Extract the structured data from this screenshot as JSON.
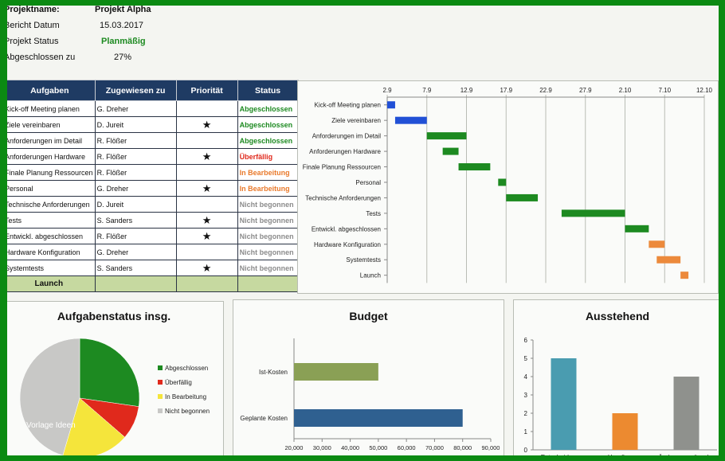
{
  "project": {
    "name_label": "Projektname:",
    "name_value": "Projekt Alpha",
    "date_label": "Bericht Datum",
    "date_value": "15.03.2017",
    "status_label": "Projekt Status",
    "status_value": "Planmäßig",
    "done_label": "Abgeschlossen zu",
    "done_value": "27%"
  },
  "table": {
    "headers": [
      "Aufgaben",
      "Zugewiesen zu",
      "Priorität",
      "Status"
    ],
    "rows": [
      {
        "task": "Kick-off Meeting planen",
        "assignee": "G. Dreher",
        "prio": "",
        "status": "Abgeschlossen"
      },
      {
        "task": "Ziele vereinbaren",
        "assignee": "D. Jureit",
        "prio": "★",
        "status": "Abgeschlossen"
      },
      {
        "task": "Anforderungen  im Detail",
        "assignee": "R. Flößer",
        "prio": "",
        "status": "Abgeschlossen"
      },
      {
        "task": "Anforderungen Hardware",
        "assignee": "R. Flößer",
        "prio": "★",
        "status": "Überfällig"
      },
      {
        "task": "Finale Planung Ressourcen",
        "assignee": "R. Flößer",
        "prio": "",
        "status": "In Bearbeitung"
      },
      {
        "task": "Personal",
        "assignee": "G. Dreher",
        "prio": "★",
        "status": "In Bearbeitung"
      },
      {
        "task": "Technische Anforderungen",
        "assignee": "D. Jureit",
        "prio": "",
        "status": "Nicht begonnen"
      },
      {
        "task": "Tests",
        "assignee": "S. Sanders",
        "prio": "★",
        "status": "Nicht begonnen"
      },
      {
        "task": "Entwickl. abgeschlossen",
        "assignee": "R. Flößer",
        "prio": "★",
        "status": "Nicht begonnen"
      },
      {
        "task": "Hardware Konfiguration",
        "assignee": "G. Dreher",
        "prio": "",
        "status": "Nicht begonnen"
      },
      {
        "task": "Systemtests",
        "assignee": "S. Sanders",
        "prio": "★",
        "status": "Nicht begonnen"
      }
    ],
    "launch": "Launch"
  },
  "status_colors": {
    "Abgeschlossen": "#1d8a21",
    "Überfällig": "#e0291c",
    "In Bearbeitung": "#e97a2c",
    "Nicht begonnen": "#8c8c8c"
  },
  "chart_data": [
    {
      "type": "bar",
      "subtype": "gantt",
      "title": "",
      "x_ticks": [
        "2.9",
        "7.9",
        "12.9",
        "17.9",
        "22.9",
        "27.9",
        "2.10",
        "7.10",
        "12.10"
      ],
      "categories": [
        "Kick-off Meeting planen",
        "Ziele vereinbaren",
        "Anforderungen  im Detail",
        "Anforderungen Hardware",
        "Finale Planung Ressourcen",
        "Personal",
        "Technische Anforderungen",
        "Tests",
        "Entwickl. abgeschlossen",
        "Hardware Konfiguration",
        "Systemtests",
        "Launch"
      ],
      "start_day": [
        0,
        1,
        5,
        7,
        9,
        14,
        15,
        22,
        30,
        33,
        34,
        37
      ],
      "duration_days": [
        1,
        4,
        5,
        2,
        4,
        1,
        4,
        8,
        3,
        2,
        3,
        1
      ],
      "colors": [
        "#2150d6",
        "#2150d6",
        "#1d8a21",
        "#1d8a21",
        "#1d8a21",
        "#1d8a21",
        "#1d8a21",
        "#1d8a21",
        "#1d8a21",
        "#ec8a3c",
        "#ec8a3c",
        "#ec8a3c"
      ],
      "x_range_days": [
        0,
        40
      ],
      "grid": true
    },
    {
      "type": "pie",
      "title": "Aufgabenstatus insg.",
      "labels": [
        "Abgeschlossen",
        "Überfällig",
        "In Bearbeitung",
        "Nicht begonnen"
      ],
      "values": [
        3,
        1,
        2,
        5
      ],
      "colors": [
        "#1d8a21",
        "#e0291c",
        "#f5e53b",
        "#c8c8c6"
      ],
      "legend": "right",
      "annotation": "Vorlage Ideen"
    },
    {
      "type": "bar",
      "orientation": "horizontal",
      "title": "Budget",
      "categories": [
        "Ist-Kosten",
        "Geplante Kosten"
      ],
      "values": [
        50000,
        80000
      ],
      "colors": [
        "#8aa055",
        "#2f6090"
      ],
      "xlim": [
        20000,
        90000
      ],
      "x_ticks": [
        "20,000",
        "30,000",
        "40,000",
        "50,000",
        "60,000",
        "70,000",
        "80,000",
        "90,000"
      ]
    },
    {
      "type": "bar",
      "title": "Ausstehend",
      "categories": [
        "Entscheidungen",
        "Handlungen",
        "Änderungswünsche"
      ],
      "values": [
        5,
        2,
        4
      ],
      "colors": [
        "#4a9cb0",
        "#ec8a30",
        "#8f918d"
      ],
      "ylim": [
        0,
        6
      ],
      "y_ticks": [
        "0",
        "1",
        "2",
        "3",
        "4",
        "5",
        "6"
      ]
    }
  ]
}
